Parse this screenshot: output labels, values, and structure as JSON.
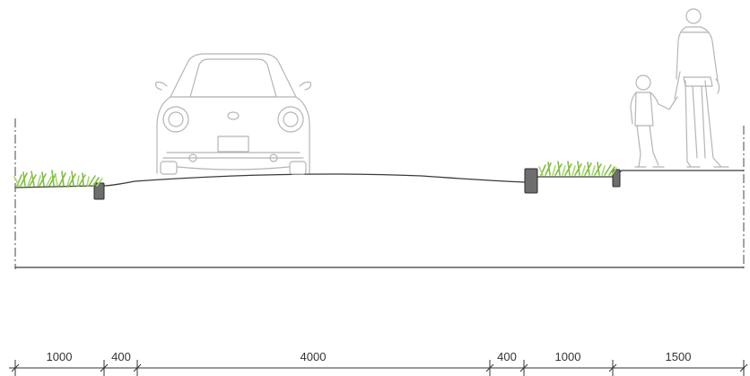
{
  "section": {
    "dimensions": [
      {
        "label": "1000",
        "value": 1000
      },
      {
        "label": "400",
        "value": 400
      },
      {
        "label": "4000",
        "value": 4000
      },
      {
        "label": "400",
        "value": 400
      },
      {
        "label": "1000",
        "value": 1000
      },
      {
        "label": "1500",
        "value": 1500
      }
    ],
    "colors": {
      "grass_light": "#a9d86b",
      "grass_dark": "#6fae2f",
      "curb": "#6e6e6e",
      "line": "#3a3a3a",
      "figure_outline": "#b5b5b5"
    },
    "icons": [
      "car-figure",
      "adult-figure",
      "child-figure",
      "grass-planting"
    ]
  }
}
